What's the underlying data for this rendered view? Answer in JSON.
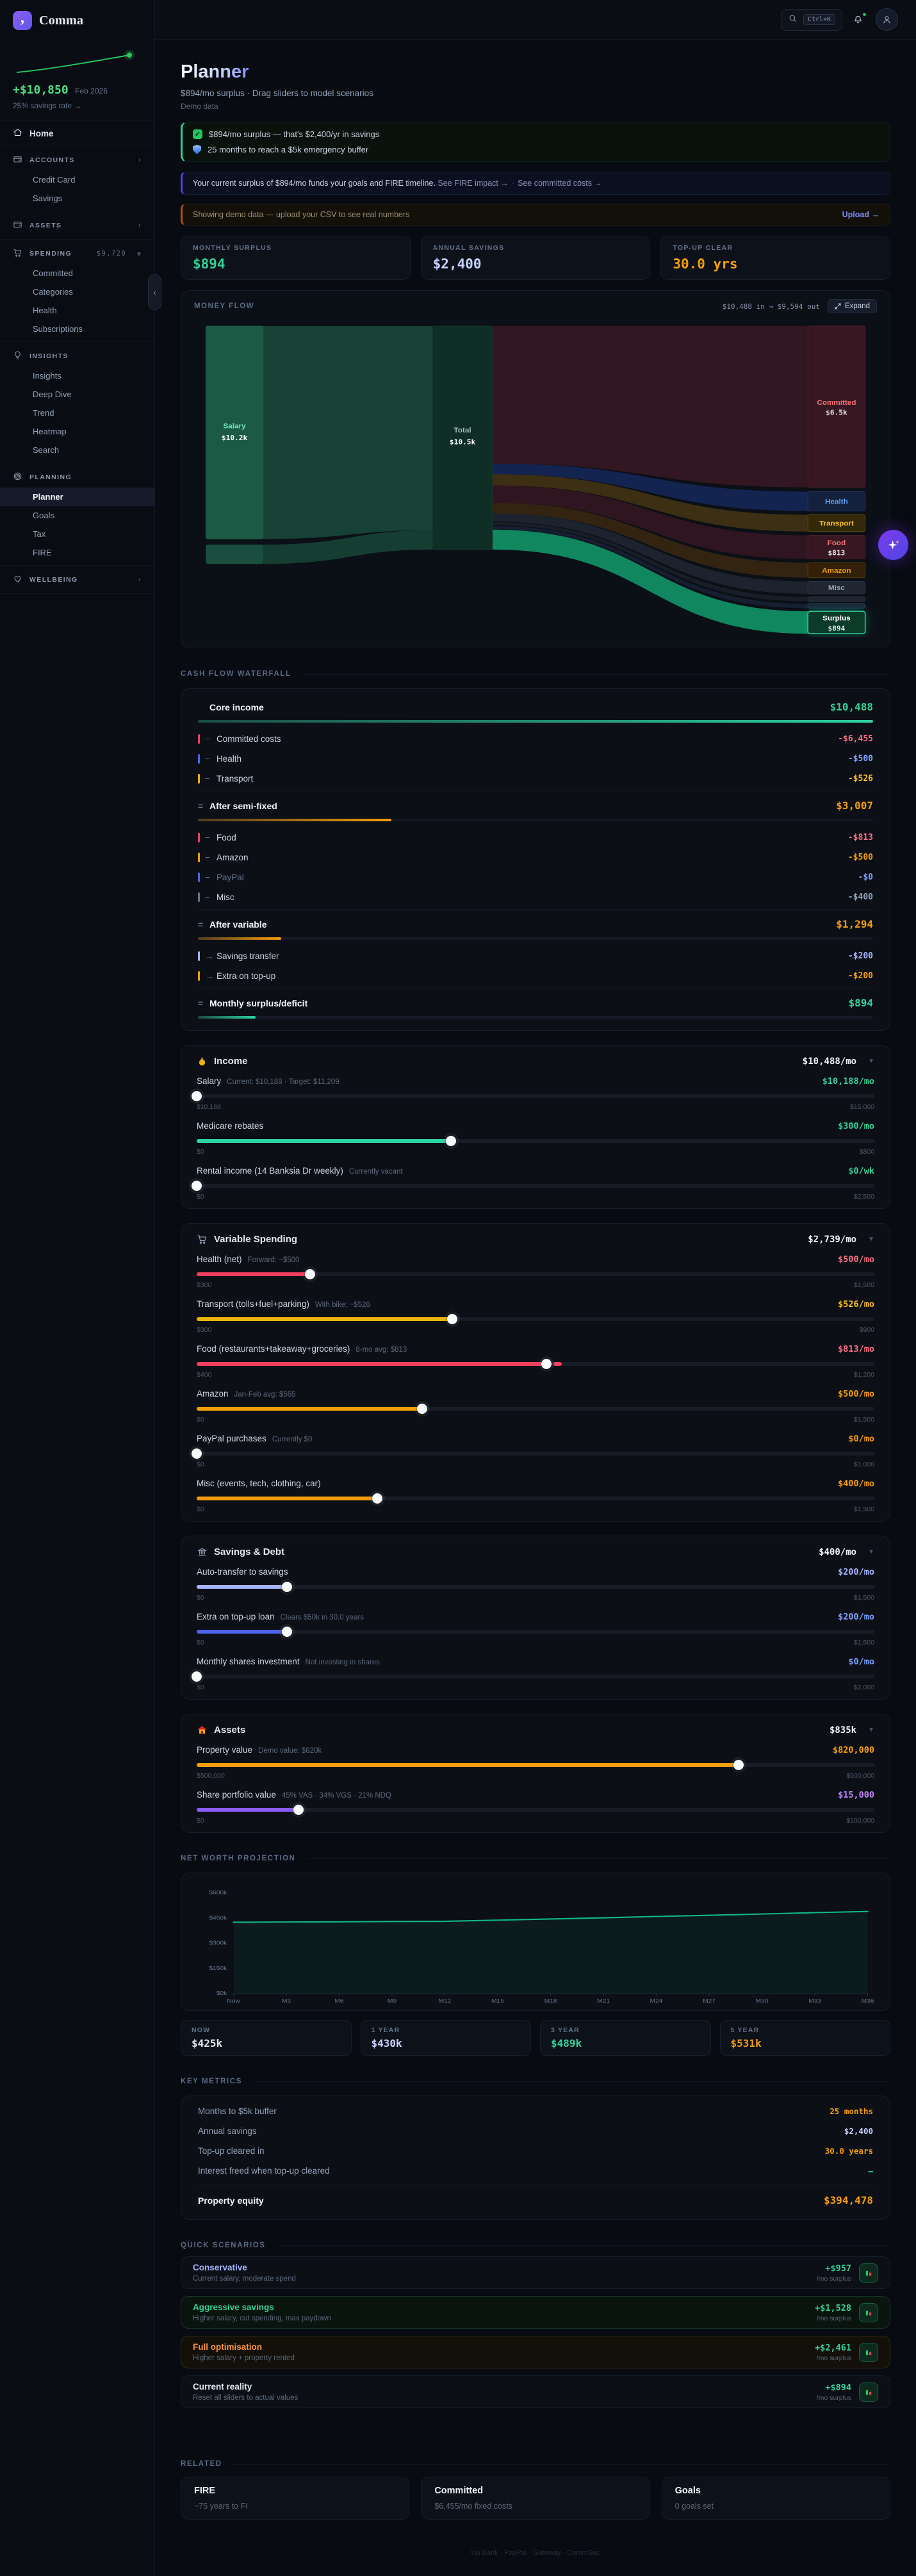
{
  "sidebar": {
    "logo": "Comma",
    "spark": {
      "amount": "+$10,850",
      "period": "Feb 2026",
      "note": "25% savings rate →"
    },
    "nav": [
      {
        "type": "link",
        "icon": "home",
        "label": "Home"
      },
      {
        "type": "group",
        "icon": "wallet",
        "label": "ACCOUNTS",
        "chevron": "›",
        "items": [
          {
            "label": "Credit Card"
          },
          {
            "label": "Savings"
          }
        ]
      },
      {
        "type": "group",
        "icon": "wallet",
        "label": "ASSETS",
        "chevron": "›",
        "items": []
      },
      {
        "type": "group",
        "icon": "cart",
        "label": "SPENDING",
        "badge": "$9,720",
        "chevron": "▾",
        "items": [
          {
            "label": "Committed"
          },
          {
            "label": "Categories"
          },
          {
            "label": "Health"
          },
          {
            "label": "Subscriptions"
          }
        ]
      },
      {
        "type": "group",
        "icon": "bulb",
        "label": "INSIGHTS",
        "items": [
          {
            "label": "Insights"
          },
          {
            "label": "Deep Dive"
          },
          {
            "label": "Trend"
          },
          {
            "label": "Heatmap"
          },
          {
            "label": "Search"
          }
        ]
      },
      {
        "type": "group",
        "icon": "target",
        "label": "PLANNING",
        "items": [
          {
            "label": "Planner",
            "active": true
          },
          {
            "label": "Goals"
          },
          {
            "label": "Tax"
          },
          {
            "label": "FIRE"
          }
        ]
      },
      {
        "type": "group",
        "icon": "heart",
        "label": "WELLBEING",
        "chevron": "›",
        "items": []
      }
    ]
  },
  "topbar": {
    "shortcut": "Ctrl+K"
  },
  "header": {
    "title": "Planner",
    "subtitle": "$894/mo surplus · Drag sliders to model scenarios",
    "badge": "Demo data"
  },
  "insights": [
    "$894/mo surplus — that's $2,400/yr in savings",
    "25 months to reach a $5k emergency buffer"
  ],
  "note": {
    "text": "Your current surplus of $894/mo funds your goals and FIRE timeline.",
    "links": [
      "See FIRE impact →",
      "See committed costs →"
    ]
  },
  "demo_banner": {
    "text": "Showing demo data — upload your CSV to see real numbers",
    "action": "Upload →"
  },
  "stats": [
    {
      "label": "MONTHLY SURPLUS",
      "value": "$894",
      "color": "green"
    },
    {
      "label": "ANNUAL SAVINGS",
      "value": "$2,400",
      "color": "peri_l"
    },
    {
      "label": "TOP-UP CLEAR",
      "value": "30.0 yrs",
      "color": "amber"
    }
  ],
  "money_flow": {
    "title": "MONEY FLOW",
    "summary": "$10,488 in → $9,594 out",
    "expand": "Expand",
    "nodes": {
      "sources": [
        {
          "label": "Salary",
          "value": "$10.2k"
        },
        {
          "label": "",
          "value": ""
        }
      ],
      "hub": {
        "label": "Total",
        "value": "$10.5k"
      },
      "outputs": [
        {
          "label": "Committed",
          "value": "$6.5k"
        },
        {
          "label": "Health",
          "value": ""
        },
        {
          "label": "Transport",
          "value": ""
        },
        {
          "label": "Food",
          "value": "$813"
        },
        {
          "label": "Amazon",
          "value": ""
        },
        {
          "label": "Misc",
          "value": ""
        },
        {
          "label": "",
          "value": ""
        },
        {
          "label": "",
          "value": ""
        },
        {
          "label": "Surplus",
          "value": "$894"
        }
      ]
    }
  },
  "waterfall": {
    "title": "CASH FLOW WATERFALL",
    "rows": [
      {
        "type": "total",
        "prefix": "",
        "label": "Core income",
        "value": "$10,488",
        "color": "green",
        "bar_pct": 100
      },
      {
        "type": "item",
        "prefix": "−",
        "label": "Committed costs",
        "value": "-$6,455",
        "color": "red"
      },
      {
        "type": "item",
        "prefix": "−",
        "label": "Health",
        "value": "-$500",
        "color": "blue"
      },
      {
        "type": "item",
        "prefix": "−",
        "label": "Transport",
        "value": "-$526",
        "color": "yellow"
      },
      {
        "type": "total",
        "prefix": "=",
        "label": "After semi-fixed",
        "value": "$3,007",
        "color": "amber",
        "bar_pct": 28.7
      },
      {
        "type": "item",
        "prefix": "−",
        "label": "Food",
        "value": "-$813",
        "color": "red"
      },
      {
        "type": "item",
        "prefix": "−",
        "label": "Amazon",
        "value": "-$500",
        "color": "amber"
      },
      {
        "type": "item",
        "prefix": "−",
        "label": "PayPal",
        "value": "-$0",
        "color": "blue",
        "dim": true
      },
      {
        "type": "item",
        "prefix": "−",
        "label": "Misc",
        "value": "-$400",
        "color": "gray"
      },
      {
        "type": "total",
        "prefix": "=",
        "label": "After variable",
        "value": "$1,294",
        "color": "amber",
        "bar_pct": 12.3
      },
      {
        "type": "item",
        "prefix": "→",
        "label": "Savings transfer",
        "value": "-$200",
        "color": "peri"
      },
      {
        "type": "item",
        "prefix": "→",
        "label": "Extra on top-up",
        "value": "-$200",
        "color": "amber"
      },
      {
        "type": "total",
        "prefix": "=",
        "label": "Monthly surplus/deficit",
        "value": "$894",
        "color": "green",
        "bar_pct": 8.5
      }
    ]
  },
  "sections": [
    {
      "icon": "income",
      "title": "Income",
      "total": "$10,488/mo",
      "rows": [
        {
          "label": "Salary",
          "note": "Current: $10,188 · Target: $11,209",
          "value": "$10,188/mo",
          "color": "green",
          "min": 10188,
          "max": 15000,
          "val": 10188,
          "min_label": "$10,188",
          "max_label": "$15,000"
        },
        {
          "label": "Medicare rebates",
          "note": "",
          "value": "$300/mo",
          "color": "green",
          "min": 0,
          "max": 800,
          "val": 300,
          "min_label": "$0",
          "max_label": "$800"
        },
        {
          "label": "Rental income (14 Banksia Dr weekly)",
          "note": "Currently vacant",
          "value": "$0/wk",
          "color": "green",
          "min": 0,
          "max": 2500,
          "val": 0,
          "min_label": "$0",
          "max_label": "$2,500"
        }
      ]
    },
    {
      "icon": "cart",
      "title": "Variable Spending",
      "total": "$2,739/mo",
      "rows": [
        {
          "label": "Health (net)",
          "note": "Forward: ~$500",
          "value": "$500/mo",
          "color": "red",
          "min": 300,
          "max": 1500,
          "val": 500,
          "min_label": "$300",
          "max_label": "$1,500"
        },
        {
          "label": "Transport (tolls+fuel+parking)",
          "note": "With bike: ~$526",
          "value": "$526/mo",
          "color": "yellow",
          "min": 300,
          "max": 900,
          "val": 526,
          "min_label": "$300",
          "max_label": "$900"
        },
        {
          "label": "Food (restaurants+takeaway+groceries)",
          "note": "8-mo avg: $813",
          "value": "$813/mo",
          "color": "red",
          "min": 400,
          "max": 1200,
          "val": 813,
          "marker": true,
          "min_label": "$400",
          "max_label": "$1,200"
        },
        {
          "label": "Amazon",
          "note": "Jan-Feb avg: $565",
          "value": "$500/mo",
          "color": "amber",
          "min": 0,
          "max": 1500,
          "val": 500,
          "min_label": "$0",
          "max_label": "$1,500"
        },
        {
          "label": "PayPal purchases",
          "note": "Currently $0",
          "value": "$0/mo",
          "color": "amber",
          "min": 0,
          "max": 1000,
          "val": 0,
          "min_label": "$0",
          "max_label": "$1,000"
        },
        {
          "label": "Misc (events, tech, clothing, car)",
          "note": "",
          "value": "$400/mo",
          "color": "amber",
          "min": 0,
          "max": 1500,
          "val": 400,
          "min_label": "$0",
          "max_label": "$1,500"
        }
      ]
    },
    {
      "icon": "bank",
      "title": "Savings & Debt",
      "total": "$400/mo",
      "rows": [
        {
          "label": "Auto-transfer to savings",
          "note": "",
          "value": "$200/mo",
          "color": "peri",
          "min": 0,
          "max": 1500,
          "val": 200,
          "min_label": "$0",
          "max_label": "$1,500"
        },
        {
          "label": "Extra on top-up loan",
          "note": "Clears $50k in 30.0 years",
          "value": "$200/mo",
          "color": "blue",
          "min": 0,
          "max": 1500,
          "val": 200,
          "min_label": "$0",
          "max_label": "$1,500"
        },
        {
          "label": "Monthly shares investment",
          "note": "Not investing in shares",
          "value": "$0/mo",
          "color": "blue",
          "min": 0,
          "max": 2000,
          "val": 0,
          "min_label": "$0",
          "max_label": "$2,000"
        }
      ]
    },
    {
      "icon": "house",
      "title": "Assets",
      "total": "$835k",
      "rows": [
        {
          "label": "Property value",
          "note": "Demo value: $820k",
          "value": "$820,000",
          "color": "amber",
          "min": 500000,
          "max": 900000,
          "val": 820000,
          "min_label": "$500,000",
          "max_label": "$900,000"
        },
        {
          "label": "Share portfolio value",
          "note": "45% VAS · 34% VGS · 21% NDQ",
          "value": "$15,000",
          "color": "purple",
          "min": 0,
          "max": 100000,
          "val": 15000,
          "min_label": "$0",
          "max_label": "$100,000"
        }
      ]
    }
  ],
  "net_worth": {
    "title": "NET WORTH PROJECTION",
    "cards": [
      {
        "label": "NOW",
        "value": "$425k",
        "color": "white"
      },
      {
        "label": "1 YEAR",
        "value": "$430k",
        "color": "peri_l"
      },
      {
        "label": "3 YEAR",
        "value": "$489k",
        "color": "green"
      },
      {
        "label": "5 YEAR",
        "value": "$531k",
        "color": "amber"
      }
    ]
  },
  "chart_data": [
    {
      "type": "area",
      "title": "NET WORTH PROJECTION",
      "x": [
        "Now",
        "M3",
        "M6",
        "M9",
        "M12",
        "M15",
        "M18",
        "M21",
        "M24",
        "M27",
        "M30",
        "M33",
        "M36"
      ],
      "values": [
        425,
        426,
        427,
        429,
        430,
        437,
        444,
        451,
        459,
        466,
        474,
        482,
        489
      ],
      "unit": "$k thousands",
      "ylim": [
        0,
        600
      ],
      "y_ticks": [
        "$0k",
        "$150k",
        "$300k",
        "$450k",
        "$600k"
      ],
      "line_color": "#10b981",
      "grid": false,
      "legend": false
    },
    {
      "type": "table",
      "title": "MONEY FLOW (sankey)",
      "flows": [
        {
          "from": "Salary",
          "to": "Total",
          "value": "$10.2k"
        },
        {
          "from": "Medicare rebates",
          "to": "Total",
          "value": "$0.3k"
        },
        {
          "from": "Total",
          "to": "Committed",
          "value": "$6.5k"
        },
        {
          "from": "Total",
          "to": "Health",
          "value": "$500"
        },
        {
          "from": "Total",
          "to": "Transport",
          "value": "$526"
        },
        {
          "from": "Total",
          "to": "Food",
          "value": "$813"
        },
        {
          "from": "Total",
          "to": "Amazon",
          "value": "$500"
        },
        {
          "from": "Total",
          "to": "Misc",
          "value": "$400"
        },
        {
          "from": "Total",
          "to": "Surplus",
          "value": "$894"
        }
      ]
    }
  ],
  "key_metrics": {
    "title": "KEY METRICS",
    "rows": [
      {
        "label": "Months to $5k buffer",
        "value": "25 months",
        "color": "amber"
      },
      {
        "label": "Annual savings",
        "value": "$2,400",
        "color": "peri_l"
      },
      {
        "label": "Top-up cleared in",
        "value": "30.0 years",
        "color": "amber"
      },
      {
        "label": "Interest freed when top-up cleared",
        "value": "–",
        "color": "green"
      }
    ],
    "total": {
      "label": "Property equity",
      "value": "$394,478",
      "color": "amber"
    }
  },
  "scenarios": {
    "title": "QUICK SCENARIOS",
    "items": [
      {
        "title": "Conservative",
        "title_color": "peri",
        "desc": "Current salary, moderate spend",
        "amount": "+$957",
        "unit": "/mo surplus",
        "tint": ""
      },
      {
        "title": "Aggressive savings",
        "title_color": "green",
        "desc": "Higher salary, cut spending, max paydown",
        "amount": "+$1,528",
        "unit": "/mo surplus",
        "tint": "green"
      },
      {
        "title": "Full optimisation",
        "title_color": "orange",
        "desc": "Higher salary + property rented",
        "amount": "+$2,461",
        "unit": "/mo surplus",
        "tint": "amber"
      },
      {
        "title": "Current reality",
        "title_color": "white",
        "desc": "Reset all sliders to actual values",
        "amount": "+$894",
        "unit": "/mo surplus",
        "tint": ""
      }
    ]
  },
  "related": {
    "title": "RELATED",
    "cards": [
      {
        "title": "FIRE",
        "sub": "~75 years to FI"
      },
      {
        "title": "Committed",
        "sub": "$6,455/mo fixed costs"
      },
      {
        "title": "Goals",
        "sub": "0 goals set"
      }
    ]
  },
  "footer": "Up Bank · PayPal · Gateway · CommSec",
  "colors": {
    "green": "#34d399",
    "red": "#fb7185",
    "yellow": "#fbbf24",
    "amber": "#f59e0b",
    "peri": "#a5b4fc",
    "peri_l": "#c7d2fe",
    "blue": "#7da2fb",
    "purple": "#c084fc",
    "gray": "#94a3b8",
    "white": "#e2e8f0",
    "orange": "#fb923c",
    "accent": "#6d5ae8"
  }
}
